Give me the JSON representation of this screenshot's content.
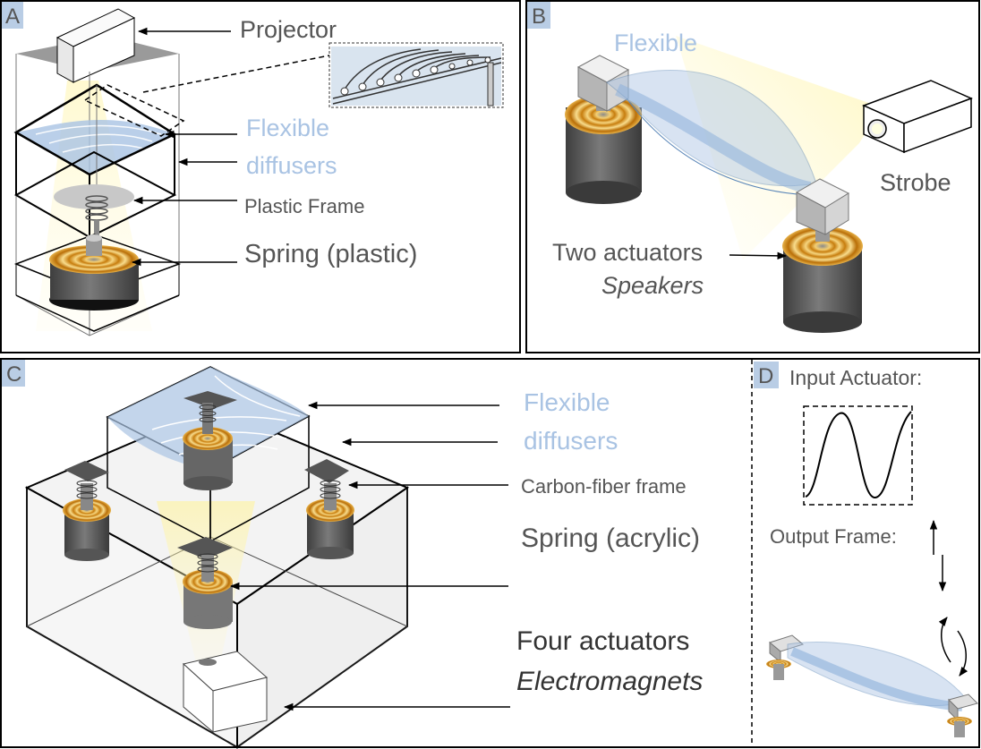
{
  "panels": {
    "a": {
      "letter": "A",
      "projector": "Projector",
      "diffusers_1": "Flexible",
      "diffusers_2": "diffusers",
      "plastic_frame": "Plastic Frame",
      "spring": "Spring  (plastic)"
    },
    "b": {
      "letter": "B",
      "flexible": "Flexible",
      "strobe": "Strobe",
      "actuators": "Two actuators",
      "speakers": "Speakers"
    },
    "c": {
      "letter": "C",
      "diffusers_1": "Flexible",
      "diffusers_2": "diffusers",
      "frame": "Carbon-fiber  frame",
      "spring": "Spring  (acrylic)",
      "actuators": "Four actuators",
      "electromagnets": "Electromagnets"
    },
    "d": {
      "letter": "D",
      "input": "Input Actuator:",
      "output": "Output Frame:"
    }
  },
  "colors": {
    "diffuser_blue": "#a9c3e3",
    "label_gray": "#555555",
    "letter_bg": "#b9cde5",
    "coil_gold": "#d99a1e",
    "light_yellow": "#fff6b0"
  }
}
